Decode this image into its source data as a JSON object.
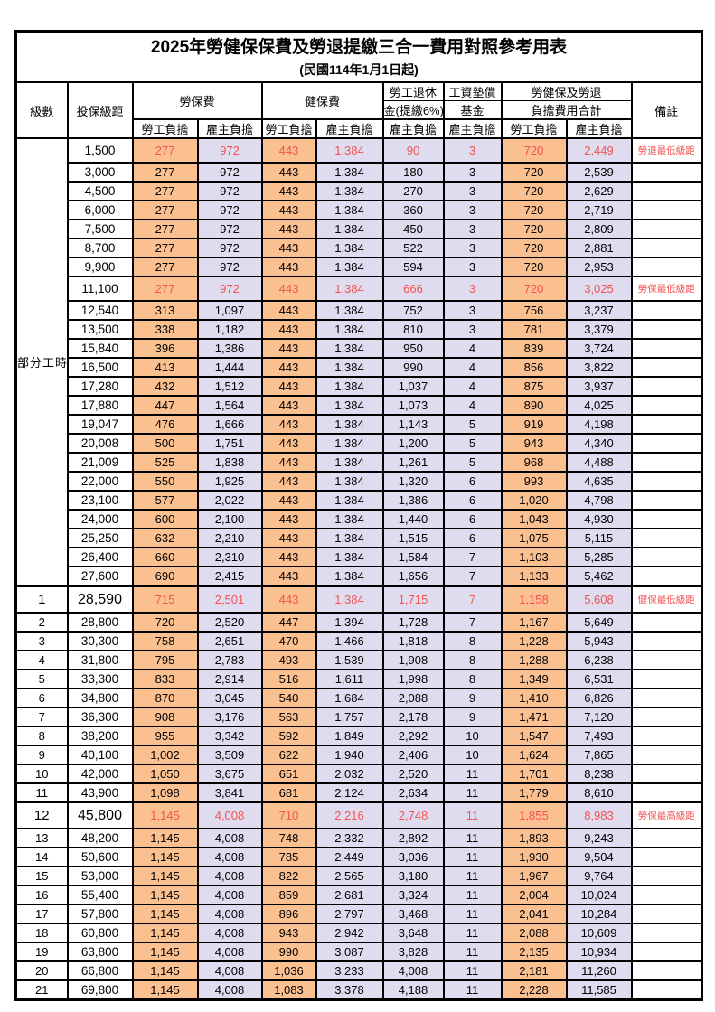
{
  "title": "2025年勞健保保費及勞退提繳三合一費用對照參考用表",
  "subtitle": "(民國114年1月1日起)",
  "header": {
    "level": "級數",
    "bracket": "投保級距",
    "labor_insurance": "勞保費",
    "health_insurance": "健保費",
    "pension_line1": "勞工退休",
    "pension_line2": "金(提繳6%)",
    "wage_fund_line1": "工資墊償",
    "wage_fund_line2": "基金",
    "total_line1": "勞健保及勞退",
    "total_line2": "負擔費用合計",
    "note": "備註",
    "employee": "勞工負擔",
    "employer": "雇主負擔"
  },
  "part_time_label": "部分工時",
  "part_time_rows": 23,
  "colors": {
    "employee_bg": "#FAC090",
    "employer_bg": "#E0DCF0",
    "highlight_text": "#F25353",
    "border": "#000000"
  },
  "rows": [
    {
      "level": "",
      "bracket": "1,500",
      "v": [
        "277",
        "972",
        "443",
        "1,384",
        "90",
        "3",
        "720",
        "2,449"
      ],
      "note": "勞退最低級距",
      "hl": true
    },
    {
      "level": "",
      "bracket": "3,000",
      "v": [
        "277",
        "972",
        "443",
        "1,384",
        "180",
        "3",
        "720",
        "2,539"
      ],
      "note": ""
    },
    {
      "level": "",
      "bracket": "4,500",
      "v": [
        "277",
        "972",
        "443",
        "1,384",
        "270",
        "3",
        "720",
        "2,629"
      ],
      "note": ""
    },
    {
      "level": "",
      "bracket": "6,000",
      "v": [
        "277",
        "972",
        "443",
        "1,384",
        "360",
        "3",
        "720",
        "2,719"
      ],
      "note": ""
    },
    {
      "level": "",
      "bracket": "7,500",
      "v": [
        "277",
        "972",
        "443",
        "1,384",
        "450",
        "3",
        "720",
        "2,809"
      ],
      "note": ""
    },
    {
      "level": "",
      "bracket": "8,700",
      "v": [
        "277",
        "972",
        "443",
        "1,384",
        "522",
        "3",
        "720",
        "2,881"
      ],
      "note": ""
    },
    {
      "level": "",
      "bracket": "9,900",
      "v": [
        "277",
        "972",
        "443",
        "1,384",
        "594",
        "3",
        "720",
        "2,953"
      ],
      "note": ""
    },
    {
      "level": "",
      "bracket": "11,100",
      "v": [
        "277",
        "972",
        "443",
        "1,384",
        "666",
        "3",
        "720",
        "3,025"
      ],
      "note": "勞保最低級距",
      "hl": true
    },
    {
      "level": "",
      "bracket": "12,540",
      "v": [
        "313",
        "1,097",
        "443",
        "1,384",
        "752",
        "3",
        "756",
        "3,237"
      ],
      "note": ""
    },
    {
      "level": "",
      "bracket": "13,500",
      "v": [
        "338",
        "1,182",
        "443",
        "1,384",
        "810",
        "3",
        "781",
        "3,379"
      ],
      "note": ""
    },
    {
      "level": "",
      "bracket": "15,840",
      "v": [
        "396",
        "1,386",
        "443",
        "1,384",
        "950",
        "4",
        "839",
        "3,724"
      ],
      "note": ""
    },
    {
      "level": "",
      "bracket": "16,500",
      "v": [
        "413",
        "1,444",
        "443",
        "1,384",
        "990",
        "4",
        "856",
        "3,822"
      ],
      "note": ""
    },
    {
      "level": "",
      "bracket": "17,280",
      "v": [
        "432",
        "1,512",
        "443",
        "1,384",
        "1,037",
        "4",
        "875",
        "3,937"
      ],
      "note": ""
    },
    {
      "level": "",
      "bracket": "17,880",
      "v": [
        "447",
        "1,564",
        "443",
        "1,384",
        "1,073",
        "4",
        "890",
        "4,025"
      ],
      "note": ""
    },
    {
      "level": "",
      "bracket": "19,047",
      "v": [
        "476",
        "1,666",
        "443",
        "1,384",
        "1,143",
        "5",
        "919",
        "4,198"
      ],
      "note": ""
    },
    {
      "level": "",
      "bracket": "20,008",
      "v": [
        "500",
        "1,751",
        "443",
        "1,384",
        "1,200",
        "5",
        "943",
        "4,340"
      ],
      "note": ""
    },
    {
      "level": "",
      "bracket": "21,009",
      "v": [
        "525",
        "1,838",
        "443",
        "1,384",
        "1,261",
        "5",
        "968",
        "4,488"
      ],
      "note": ""
    },
    {
      "level": "",
      "bracket": "22,000",
      "v": [
        "550",
        "1,925",
        "443",
        "1,384",
        "1,320",
        "6",
        "993",
        "4,635"
      ],
      "note": ""
    },
    {
      "level": "",
      "bracket": "23,100",
      "v": [
        "577",
        "2,022",
        "443",
        "1,384",
        "1,386",
        "6",
        "1,020",
        "4,798"
      ],
      "note": ""
    },
    {
      "level": "",
      "bracket": "24,000",
      "v": [
        "600",
        "2,100",
        "443",
        "1,384",
        "1,440",
        "6",
        "1,043",
        "4,930"
      ],
      "note": ""
    },
    {
      "level": "",
      "bracket": "25,250",
      "v": [
        "632",
        "2,210",
        "443",
        "1,384",
        "1,515",
        "6",
        "1,075",
        "5,115"
      ],
      "note": ""
    },
    {
      "level": "",
      "bracket": "26,400",
      "v": [
        "660",
        "2,310",
        "443",
        "1,384",
        "1,584",
        "7",
        "1,103",
        "5,285"
      ],
      "note": ""
    },
    {
      "level": "",
      "bracket": "27,600",
      "v": [
        "690",
        "2,415",
        "443",
        "1,384",
        "1,656",
        "7",
        "1,133",
        "5,462"
      ],
      "note": ""
    },
    {
      "level": "1",
      "bracket": "28,590",
      "v": [
        "715",
        "2,501",
        "443",
        "1,384",
        "1,715",
        "7",
        "1,158",
        "5,608"
      ],
      "note": "健保最低級距",
      "hl": true,
      "big": true,
      "sec": true
    },
    {
      "level": "2",
      "bracket": "28,800",
      "v": [
        "720",
        "2,520",
        "447",
        "1,394",
        "1,728",
        "7",
        "1,167",
        "5,649"
      ],
      "note": ""
    },
    {
      "level": "3",
      "bracket": "30,300",
      "v": [
        "758",
        "2,651",
        "470",
        "1,466",
        "1,818",
        "8",
        "1,228",
        "5,943"
      ],
      "note": ""
    },
    {
      "level": "4",
      "bracket": "31,800",
      "v": [
        "795",
        "2,783",
        "493",
        "1,539",
        "1,908",
        "8",
        "1,288",
        "6,238"
      ],
      "note": ""
    },
    {
      "level": "5",
      "bracket": "33,300",
      "v": [
        "833",
        "2,914",
        "516",
        "1,611",
        "1,998",
        "8",
        "1,349",
        "6,531"
      ],
      "note": ""
    },
    {
      "level": "6",
      "bracket": "34,800",
      "v": [
        "870",
        "3,045",
        "540",
        "1,684",
        "2,088",
        "9",
        "1,410",
        "6,826"
      ],
      "note": ""
    },
    {
      "level": "7",
      "bracket": "36,300",
      "v": [
        "908",
        "3,176",
        "563",
        "1,757",
        "2,178",
        "9",
        "1,471",
        "7,120"
      ],
      "note": ""
    },
    {
      "level": "8",
      "bracket": "38,200",
      "v": [
        "955",
        "3,342",
        "592",
        "1,849",
        "2,292",
        "10",
        "1,547",
        "7,493"
      ],
      "note": ""
    },
    {
      "level": "9",
      "bracket": "40,100",
      "v": [
        "1,002",
        "3,509",
        "622",
        "1,940",
        "2,406",
        "10",
        "1,624",
        "7,865"
      ],
      "note": ""
    },
    {
      "level": "10",
      "bracket": "42,000",
      "v": [
        "1,050",
        "3,675",
        "651",
        "2,032",
        "2,520",
        "11",
        "1,701",
        "8,238"
      ],
      "note": ""
    },
    {
      "level": "11",
      "bracket": "43,900",
      "v": [
        "1,098",
        "3,841",
        "681",
        "2,124",
        "2,634",
        "11",
        "1,779",
        "8,610"
      ],
      "note": ""
    },
    {
      "level": "12",
      "bracket": "45,800",
      "v": [
        "1,145",
        "4,008",
        "710",
        "2,216",
        "2,748",
        "11",
        "1,855",
        "8,983"
      ],
      "note": "勞保最高級距",
      "hl": true,
      "big": true
    },
    {
      "level": "13",
      "bracket": "48,200",
      "v": [
        "1,145",
        "4,008",
        "748",
        "2,332",
        "2,892",
        "11",
        "1,893",
        "9,243"
      ],
      "note": ""
    },
    {
      "level": "14",
      "bracket": "50,600",
      "v": [
        "1,145",
        "4,008",
        "785",
        "2,449",
        "3,036",
        "11",
        "1,930",
        "9,504"
      ],
      "note": ""
    },
    {
      "level": "15",
      "bracket": "53,000",
      "v": [
        "1,145",
        "4,008",
        "822",
        "2,565",
        "3,180",
        "11",
        "1,967",
        "9,764"
      ],
      "note": ""
    },
    {
      "level": "16",
      "bracket": "55,400",
      "v": [
        "1,145",
        "4,008",
        "859",
        "2,681",
        "3,324",
        "11",
        "2,004",
        "10,024"
      ],
      "note": ""
    },
    {
      "level": "17",
      "bracket": "57,800",
      "v": [
        "1,145",
        "4,008",
        "896",
        "2,797",
        "3,468",
        "11",
        "2,041",
        "10,284"
      ],
      "note": ""
    },
    {
      "level": "18",
      "bracket": "60,800",
      "v": [
        "1,145",
        "4,008",
        "943",
        "2,942",
        "3,648",
        "11",
        "2,088",
        "10,609"
      ],
      "note": ""
    },
    {
      "level": "19",
      "bracket": "63,800",
      "v": [
        "1,145",
        "4,008",
        "990",
        "3,087",
        "3,828",
        "11",
        "2,135",
        "10,934"
      ],
      "note": ""
    },
    {
      "level": "20",
      "bracket": "66,800",
      "v": [
        "1,145",
        "4,008",
        "1,036",
        "3,233",
        "4,008",
        "11",
        "2,181",
        "11,260"
      ],
      "note": ""
    },
    {
      "level": "21",
      "bracket": "69,800",
      "v": [
        "1,145",
        "4,008",
        "1,083",
        "3,378",
        "4,188",
        "11",
        "2,228",
        "11,585"
      ],
      "note": ""
    }
  ]
}
